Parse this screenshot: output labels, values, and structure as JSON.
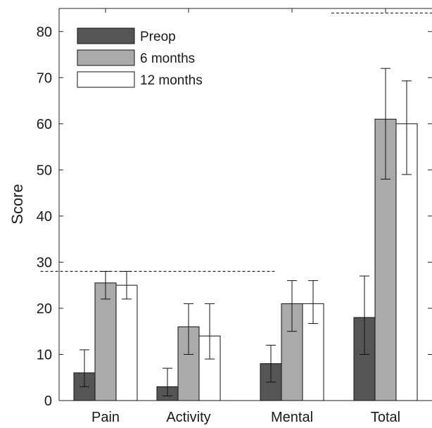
{
  "chart_data": {
    "type": "bar",
    "ylabel": "Score",
    "ylim": [
      0,
      85
    ],
    "yticks": [
      0,
      10,
      20,
      30,
      40,
      50,
      60,
      70,
      80
    ],
    "categories": [
      "Pain",
      "Activity",
      "Mental",
      "Total"
    ],
    "series": [
      {
        "name": "Preop",
        "color": "#555555",
        "values": [
          6,
          3,
          8,
          18
        ],
        "err_low": [
          3,
          1,
          4,
          10
        ],
        "err_high": [
          11,
          7,
          12,
          27
        ]
      },
      {
        "name": "6 months",
        "color": "#aaaaaa",
        "values": [
          25.5,
          16,
          21,
          61
        ],
        "err_low": [
          22,
          10,
          15,
          48
        ],
        "err_high": [
          28,
          21,
          26,
          72
        ]
      },
      {
        "name": "12 months",
        "color": "#ffffff",
        "values": [
          25,
          14,
          21,
          60
        ],
        "err_low": [
          22,
          9,
          16.7,
          49
        ],
        "err_high": [
          28,
          21,
          26,
          69.3
        ]
      }
    ],
    "reference_lines": [
      {
        "value": 28,
        "x_from": -0.05,
        "x_to": 0.58,
        "style": "dashed"
      },
      {
        "value": 84,
        "x_from": 0.73,
        "x_to": 1.0,
        "style": "dashed"
      }
    ],
    "legend_position": "top-left",
    "grid": false
  }
}
